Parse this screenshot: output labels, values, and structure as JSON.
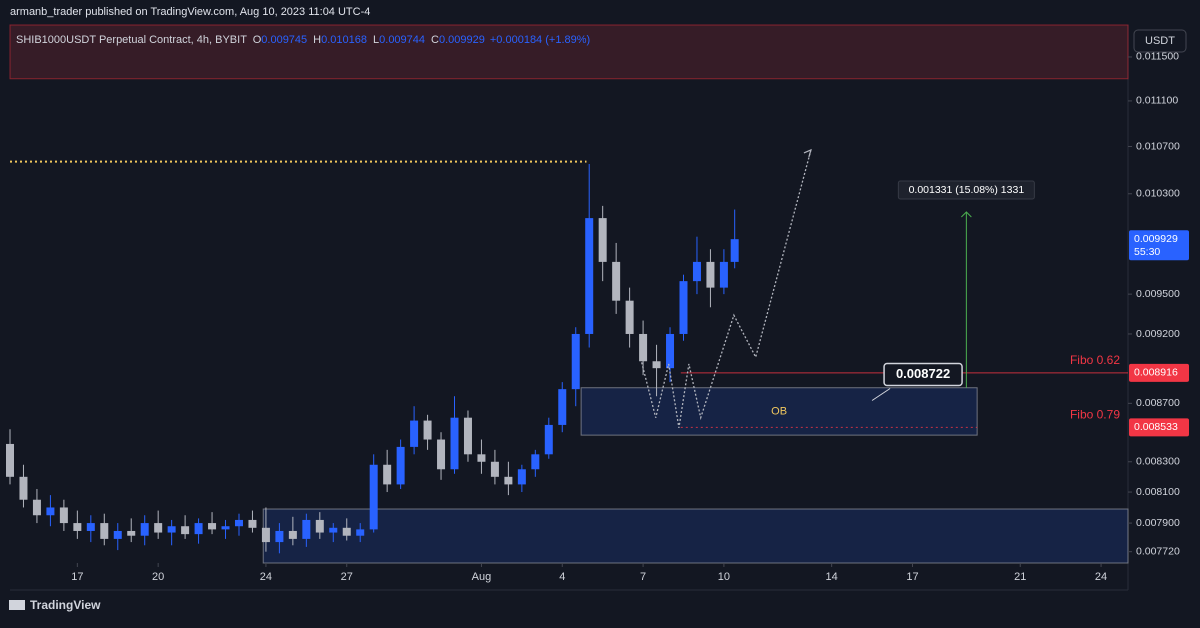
{
  "page": {
    "publisher_line": "armanb_trader published on TradingView.com, Aug 10, 2023 11:04 UTC-4",
    "footer_brand": "TradingView",
    "currency_button": "USDT"
  },
  "chart_data": {
    "type": "candlestick",
    "header": {
      "symbol": "SHIB1000USDT Perpetual Contract, 4h, BYBIT",
      "fields": [
        {
          "key": "O",
          "value": "0.009745"
        },
        {
          "key": "H",
          "value": "0.010168"
        },
        {
          "key": "L",
          "value": "0.009744"
        },
        {
          "key": "C",
          "value": "0.009929"
        }
      ],
      "change": "+0.000184 (+1.89%)"
    },
    "x": [
      14.5,
      15,
      15.5,
      16,
      16.5,
      17,
      17.5,
      18,
      18.5,
      19,
      19.5,
      20,
      20.5,
      21,
      21.5,
      22,
      22.5,
      23,
      23.5,
      24,
      24.5,
      25,
      25.5,
      26,
      26.5,
      27,
      27.5,
      28,
      28.5,
      29,
      29.5,
      30,
      30.5,
      31,
      31.5,
      32,
      32.5,
      33,
      33.5,
      34,
      34.5,
      35,
      35.5,
      36,
      36.5,
      37,
      37.5,
      38,
      38.5,
      39,
      39.5,
      40,
      40.5,
      41,
      41.4
    ],
    "open": [
      0.00842,
      0.0082,
      0.00805,
      0.00795,
      0.008,
      0.0079,
      0.00785,
      0.0079,
      0.0078,
      0.00785,
      0.00782,
      0.0079,
      0.00784,
      0.00788,
      0.00783,
      0.0079,
      0.00786,
      0.00788,
      0.00792,
      0.00787,
      0.00778,
      0.00785,
      0.0078,
      0.00792,
      0.00784,
      0.00787,
      0.00782,
      0.00786,
      0.00828,
      0.00815,
      0.0084,
      0.00858,
      0.00845,
      0.00825,
      0.0086,
      0.00835,
      0.0083,
      0.0082,
      0.00815,
      0.00825,
      0.00835,
      0.00855,
      0.0088,
      0.0092,
      0.0101,
      0.00975,
      0.00945,
      0.0092,
      0.009,
      0.00895,
      0.0092,
      0.0096,
      0.00975,
      0.00955,
      0.00975
    ],
    "high": [
      0.00852,
      0.00828,
      0.00812,
      0.00808,
      0.00805,
      0.00798,
      0.00795,
      0.00796,
      0.0079,
      0.00793,
      0.00795,
      0.00798,
      0.00792,
      0.00795,
      0.00793,
      0.00797,
      0.00792,
      0.00796,
      0.00798,
      0.008,
      0.0079,
      0.00794,
      0.00796,
      0.00797,
      0.0079,
      0.00793,
      0.0079,
      0.00835,
      0.00838,
      0.00845,
      0.00868,
      0.00862,
      0.0085,
      0.00875,
      0.00865,
      0.00845,
      0.00838,
      0.0083,
      0.00828,
      0.00838,
      0.0086,
      0.00885,
      0.00925,
      0.01055,
      0.0102,
      0.0099,
      0.00955,
      0.0093,
      0.00912,
      0.00925,
      0.00965,
      0.00995,
      0.00985,
      0.00985,
      0.01017
    ],
    "low": [
      0.00815,
      0.008,
      0.0079,
      0.00788,
      0.00785,
      0.0078,
      0.00778,
      0.00776,
      0.00773,
      0.00778,
      0.00776,
      0.0078,
      0.00776,
      0.0078,
      0.00777,
      0.00783,
      0.0078,
      0.00782,
      0.00784,
      0.00772,
      0.00771,
      0.00776,
      0.00775,
      0.0078,
      0.00778,
      0.00779,
      0.00778,
      0.00784,
      0.0081,
      0.00812,
      0.00835,
      0.00838,
      0.00818,
      0.00822,
      0.0083,
      0.00822,
      0.00815,
      0.00808,
      0.0081,
      0.0082,
      0.00832,
      0.0085,
      0.00868,
      0.0091,
      0.0096,
      0.00935,
      0.0091,
      0.0089,
      0.00875,
      0.00885,
      0.00915,
      0.0095,
      0.0094,
      0.0095,
      0.0097
    ],
    "close": [
      0.0082,
      0.00805,
      0.00795,
      0.008,
      0.0079,
      0.00785,
      0.0079,
      0.0078,
      0.00785,
      0.00782,
      0.0079,
      0.00784,
      0.00788,
      0.00783,
      0.0079,
      0.00786,
      0.00788,
      0.00792,
      0.00787,
      0.00778,
      0.00785,
      0.0078,
      0.00792,
      0.00784,
      0.00787,
      0.00782,
      0.00786,
      0.00828,
      0.00815,
      0.0084,
      0.00858,
      0.00845,
      0.00825,
      0.0086,
      0.00835,
      0.0083,
      0.0082,
      0.00815,
      0.00825,
      0.00835,
      0.00855,
      0.0088,
      0.0092,
      0.0101,
      0.00975,
      0.00945,
      0.0092,
      0.009,
      0.00895,
      0.0092,
      0.0096,
      0.00975,
      0.00955,
      0.00975,
      0.00993
    ],
    "up_color": "#2962ff",
    "down_color": "#b2b5be",
    "log_scale": true,
    "grid": false,
    "xlim": [
      14.5,
      56
    ],
    "ylim": [
      0.00765,
      0.0118
    ],
    "xticks": [
      17,
      20,
      24,
      27,
      {
        "value": 32,
        "label": "Aug"
      },
      {
        "value": 35,
        "label": "4"
      },
      {
        "value": 38,
        "label": "7"
      },
      {
        "value": 41,
        "label": "10"
      },
      {
        "value": 45,
        "label": "14"
      },
      {
        "value": 48,
        "label": "17"
      },
      {
        "value": 52,
        "label": "21"
      },
      {
        "value": 55,
        "label": "24"
      }
    ],
    "yticks": [
      {
        "value": 0.0115,
        "label": "0.011500"
      },
      {
        "value": 0.0111,
        "label": "0.011100"
      },
      {
        "value": 0.0107,
        "label": "0.010700"
      },
      {
        "value": 0.0103,
        "label": "0.010300"
      },
      {
        "value": 0.0095,
        "label": "0.009500"
      },
      {
        "value": 0.0092,
        "label": "0.009200"
      },
      {
        "value": 0.0087,
        "label": "0.008700"
      },
      {
        "value": 0.0083,
        "label": "0.008300"
      },
      {
        "value": 0.0081,
        "label": "0.008100"
      },
      {
        "value": 0.0079,
        "label": "0.007900"
      },
      {
        "value": 0.00772,
        "label": "0.007720"
      }
    ],
    "last_price": {
      "value": 0.009929,
      "countdown": "55:30",
      "color": "#2962ff"
    },
    "fibo": [
      {
        "label": "Fibo 0.62",
        "value": 0.008916,
        "color": "#f23645",
        "style": "solid"
      },
      {
        "label": "Fibo 0.79",
        "value": 0.008533,
        "color": "#f23645",
        "style": "dotted"
      }
    ],
    "zones": [
      {
        "label": "OB",
        "x": [
          35.7,
          50.4
        ],
        "y": [
          0.00848,
          0.00881
        ],
        "color": "#2962ff"
      },
      {
        "x": [
          23.9,
          56
        ],
        "y": [
          0.00765,
          0.00799
        ],
        "color": "#2962ff"
      },
      {
        "x": [
          14.5,
          56
        ],
        "y": [
          0.0113,
          0.0118
        ],
        "color": "#f23645"
      }
    ],
    "level_line": {
      "value": 0.01057,
      "x": [
        14.5,
        35.9
      ],
      "color": "#f0c75e"
    },
    "projection": {
      "x": [
        37.91,
        38.47,
        38.95,
        39.33,
        39.7,
        40.14,
        41.37,
        42.18,
        44.23
      ],
      "y": [
        0.00902,
        0.0086,
        0.00898,
        0.00853,
        0.00898,
        0.0086,
        0.00934,
        0.00903,
        0.01067
      ]
    },
    "measure": {
      "x": 50,
      "y": [
        0.00881,
        0.01015
      ],
      "label": "0.001331 (15.08%) 1331",
      "color": "#4caf50"
    },
    "callout": {
      "text": "0.008722",
      "x": 46.5,
      "y": 0.00872
    }
  }
}
